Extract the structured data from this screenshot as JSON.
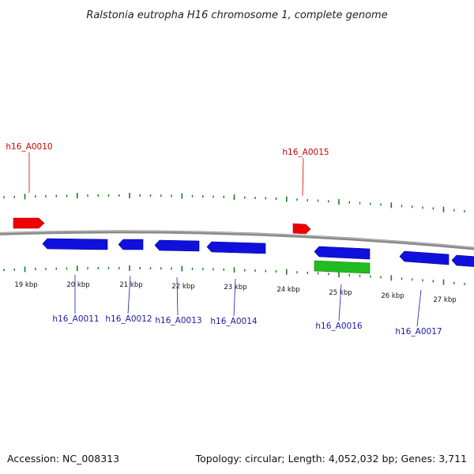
{
  "title": "Ralstonia eutropha H16 chromosome 1, complete genome",
  "footer": {
    "accession": "Accession: NC_008313",
    "topology": "Topology: circular; Length: 4,052,032 bp; Genes: 3,711"
  },
  "scale_labels": [
    "19 kbp",
    "20 kbp",
    "21 kbp",
    "22 kbp",
    "23 kbp",
    "24 kbp",
    "25 kbp",
    "26 kbp",
    "27 kbp"
  ],
  "gene_labels": {
    "h16_A0010": "h16_A0010",
    "h16_A0011": "h16_A0011",
    "h16_A0012": "h16_A0012",
    "h16_A0013": "h16_A0013",
    "h16_A0014": "h16_A0014",
    "h16_A0015": "h16_A0015",
    "h16_A0016": "h16_A0016",
    "h16_A0017": "h16_A0017"
  },
  "colors": {
    "forward_gene": "#ee0000",
    "reverse_gene": "#1010dd",
    "highlight_gene": "#22bb22",
    "tick": "#1f7a1f",
    "backbone": "#888888",
    "label_red": "#cc0000",
    "label_blue": "#1a1aa8"
  }
}
